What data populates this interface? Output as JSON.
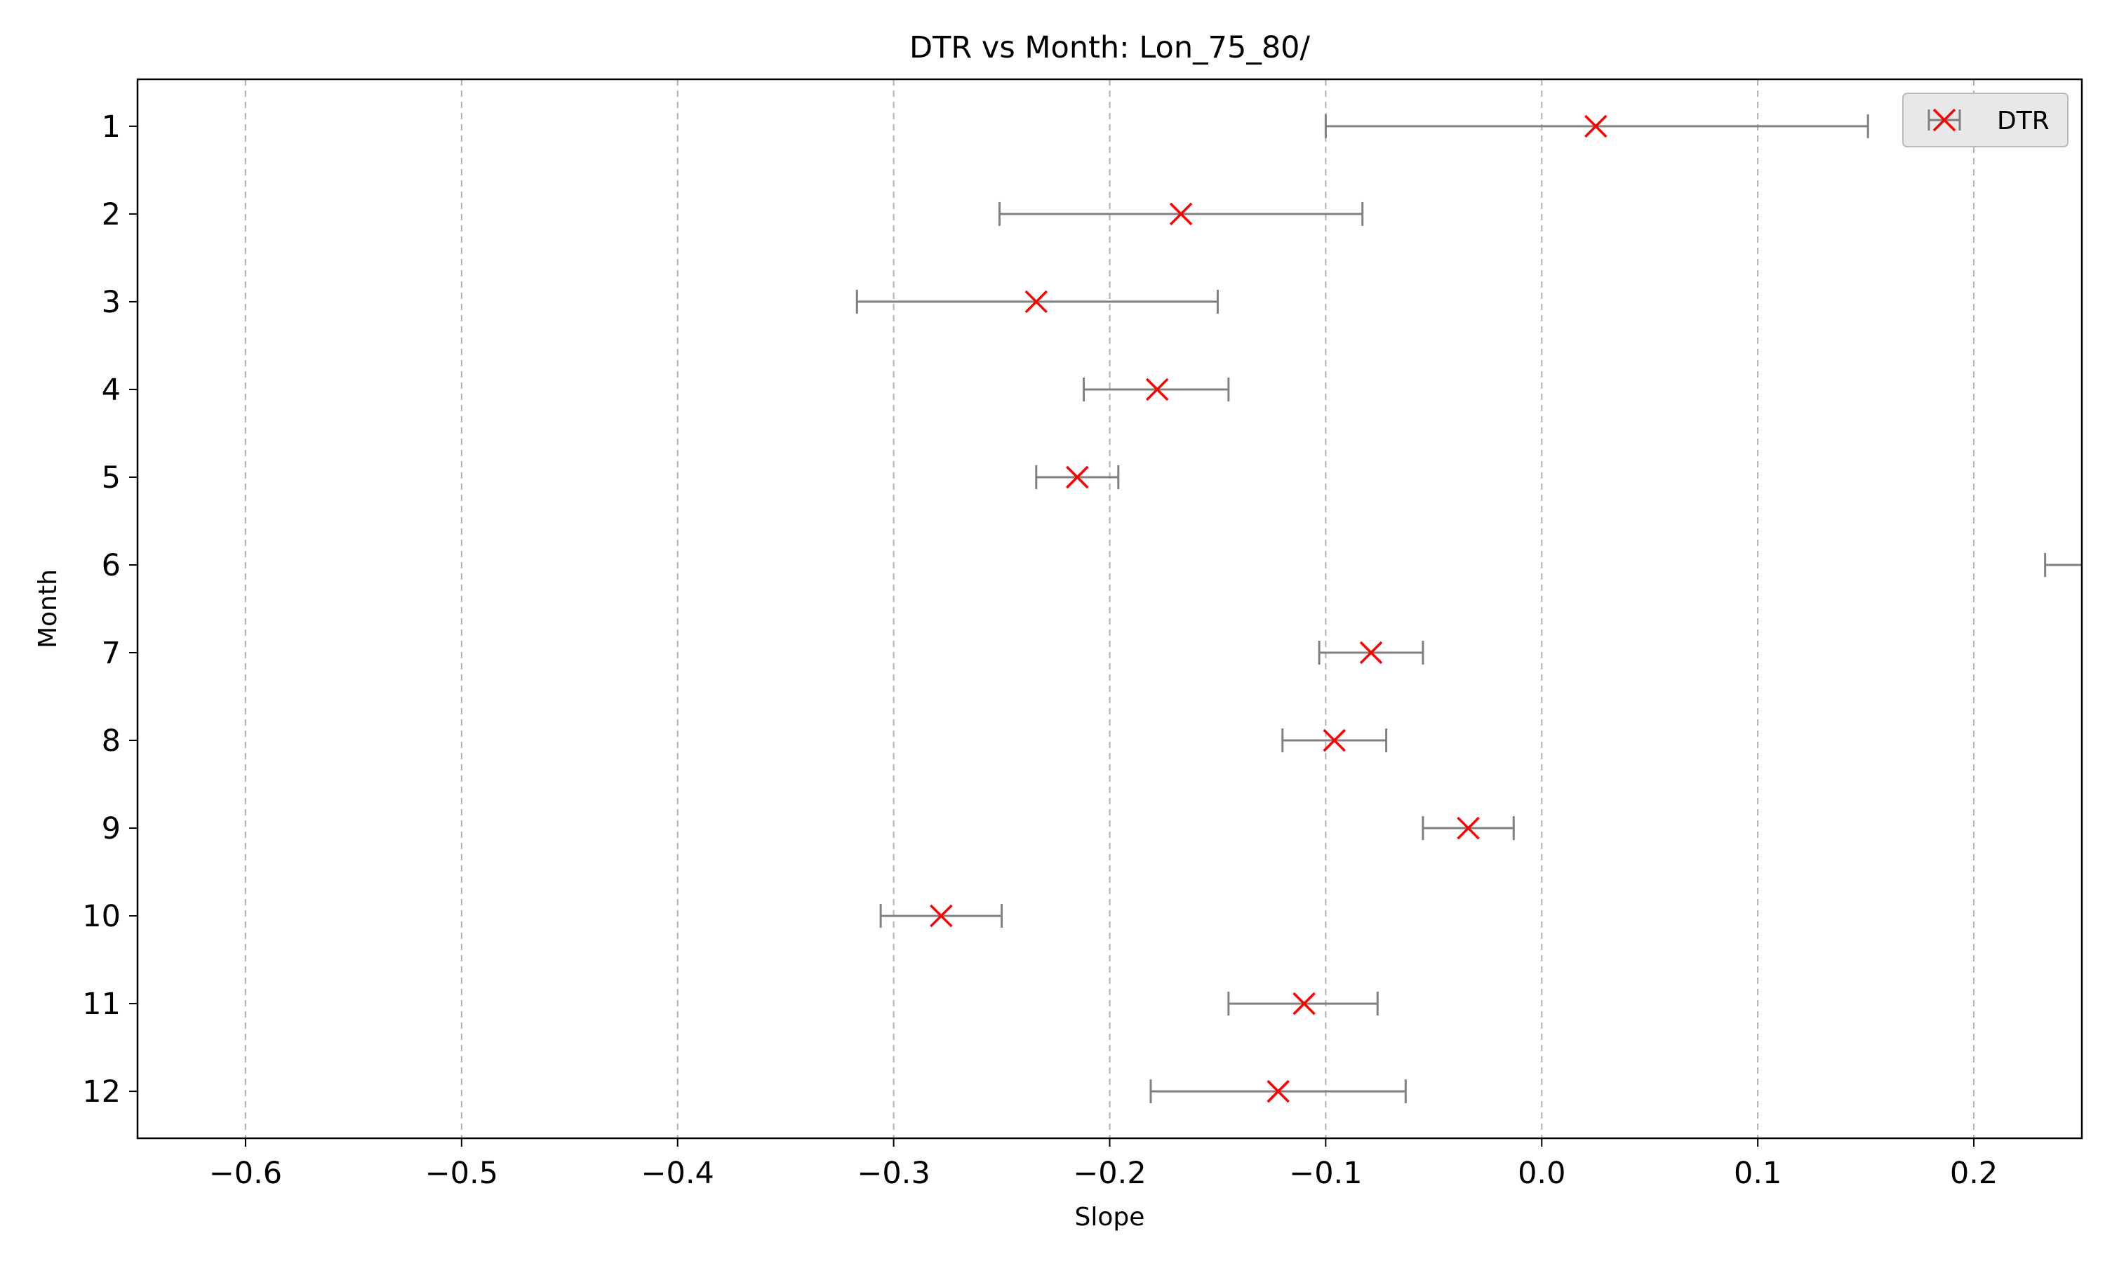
{
  "chart_data": {
    "type": "scatter",
    "title": "DTR vs Month: Lon_75_80/",
    "xlabel": "Slope",
    "ylabel": "Month",
    "xlim": [
      -0.65,
      0.25
    ],
    "ylim": [
      1,
      12
    ],
    "y_inverted": true,
    "xticks": [
      -0.6,
      -0.5,
      -0.4,
      -0.3,
      -0.2,
      -0.1,
      0.0,
      0.1,
      0.2
    ],
    "xtick_labels": [
      "−0.6",
      "−0.5",
      "−0.4",
      "−0.3",
      "−0.2",
      "−0.1",
      "0.0",
      "0.1",
      "0.2"
    ],
    "yticks": [
      1,
      2,
      3,
      4,
      5,
      6,
      7,
      8,
      9,
      10,
      11,
      12
    ],
    "ytick_labels": [
      "1",
      "2",
      "3",
      "4",
      "5",
      "6",
      "7",
      "8",
      "9",
      "10",
      "11",
      "12"
    ],
    "grid": "vertical dashed",
    "legend_position": "top-right",
    "series": [
      {
        "name": "DTR",
        "marker": "x",
        "color": "#ff0000",
        "errorbar_color": "#808080",
        "points": [
          {
            "month": 1,
            "slope": 0.025,
            "ci_low": -0.1,
            "ci_high": 0.151
          },
          {
            "month": 2,
            "slope": -0.167,
            "ci_low": -0.251,
            "ci_high": -0.083
          },
          {
            "month": 3,
            "slope": -0.234,
            "ci_low": -0.317,
            "ci_high": -0.15
          },
          {
            "month": 4,
            "slope": -0.178,
            "ci_low": -0.212,
            "ci_high": -0.145
          },
          {
            "month": 5,
            "slope": -0.215,
            "ci_low": -0.234,
            "ci_high": -0.196
          },
          {
            "month": 6,
            "slope": null,
            "ci_low": 0.233,
            "ci_high": null
          },
          {
            "month": 7,
            "slope": -0.079,
            "ci_low": -0.103,
            "ci_high": -0.055
          },
          {
            "month": 8,
            "slope": -0.096,
            "ci_low": -0.12,
            "ci_high": -0.072
          },
          {
            "month": 9,
            "slope": -0.034,
            "ci_low": -0.055,
            "ci_high": -0.013
          },
          {
            "month": 10,
            "slope": -0.278,
            "ci_low": -0.306,
            "ci_high": -0.25
          },
          {
            "month": 11,
            "slope": -0.11,
            "ci_low": -0.145,
            "ci_high": -0.076
          },
          {
            "month": 12,
            "slope": -0.122,
            "ci_low": -0.181,
            "ci_high": -0.063
          }
        ]
      }
    ]
  },
  "colors": {
    "marker": "#ff0000",
    "errorbar": "#808080",
    "grid": "#b0b0b0",
    "legend_bg": "#e8e8e8",
    "legend_border": "#bbbbbb"
  }
}
